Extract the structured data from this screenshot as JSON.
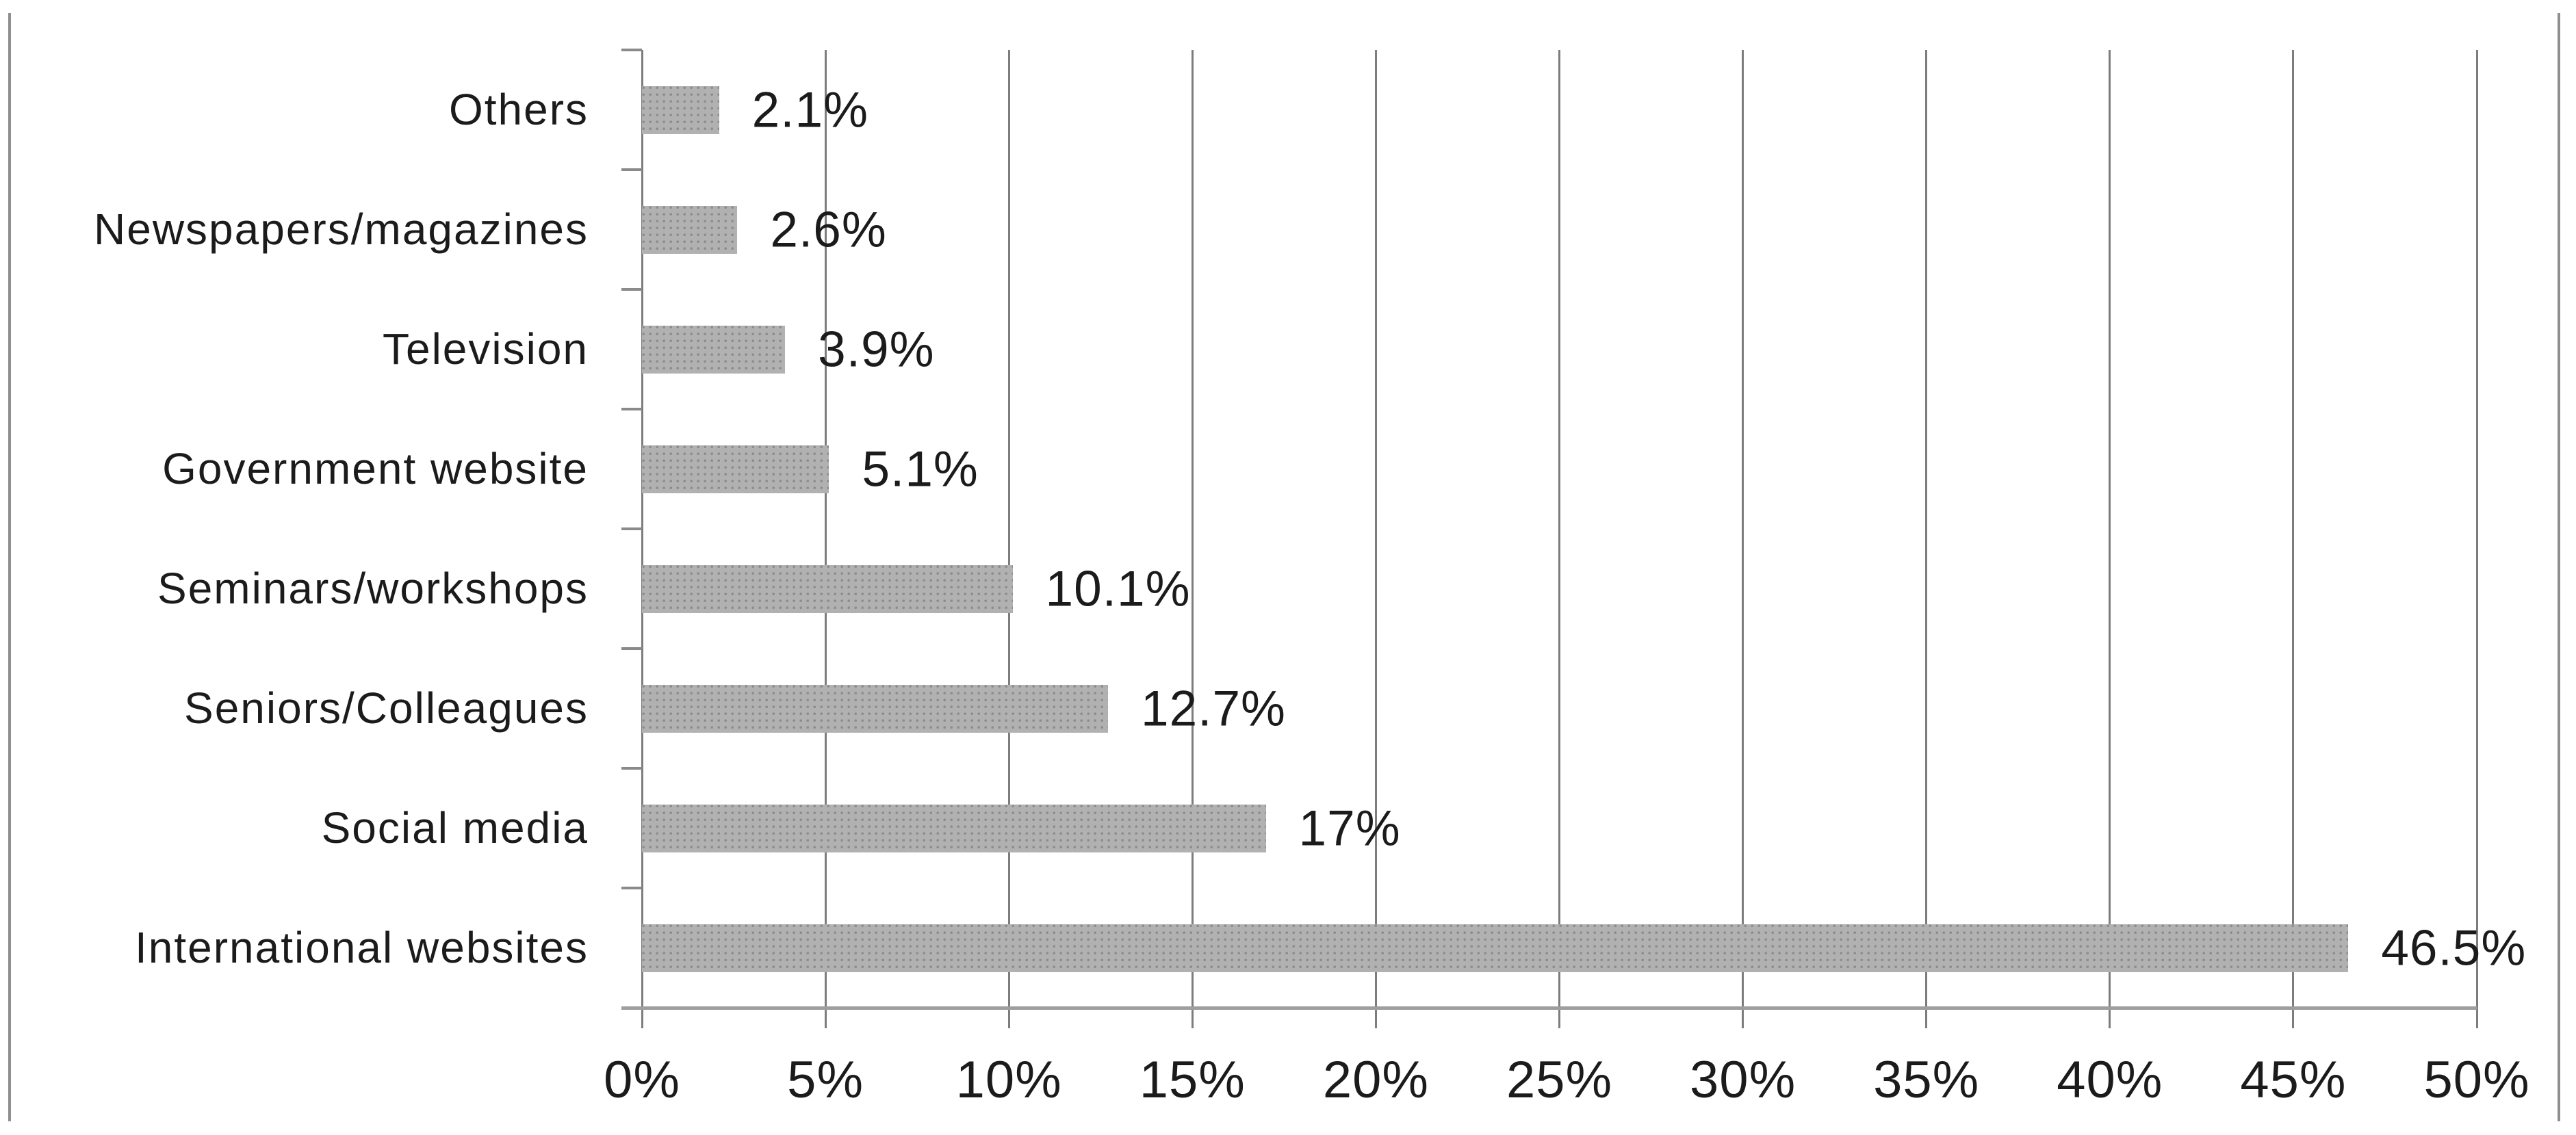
{
  "chart_data": {
    "type": "bar",
    "orientation": "horizontal",
    "title": "",
    "xlabel": "",
    "ylabel": "",
    "legend": "none",
    "grid": "vertical",
    "bar_fill_style": "gray dotted pattern",
    "categories": [
      "Others",
      "Newspapers/magazines",
      "Television",
      "Government website",
      "Seminars/workshops",
      "Seniors/Colleagues",
      "Social media",
      "International websites"
    ],
    "values": [
      2.1,
      2.6,
      3.9,
      5.1,
      10.1,
      12.7,
      17,
      46.5
    ],
    "value_labels": [
      "2.1%",
      "2.6%",
      "3.9%",
      "5.1%",
      "10.1%",
      "12.7%",
      "17%",
      "46.5%"
    ],
    "xlim": [
      0,
      50
    ],
    "x_tick_step": 5,
    "x_tick_labels": [
      "0%",
      "5%",
      "10%",
      "15%",
      "20%",
      "25%",
      "30%",
      "35%",
      "40%",
      "45%",
      "50%"
    ],
    "colors": {
      "background": "#ffffff",
      "bar_base": "#b1b1b1",
      "bar_dot": "#8d8d8d",
      "gridline": "#7d7d7d",
      "category_axis_line": "#7d7d7d",
      "value_axis_line": "#9e9e9e",
      "tick_mark": "#8a8a8a",
      "frame_border": "#8f8f8f",
      "text": "#1b1b1b"
    }
  }
}
